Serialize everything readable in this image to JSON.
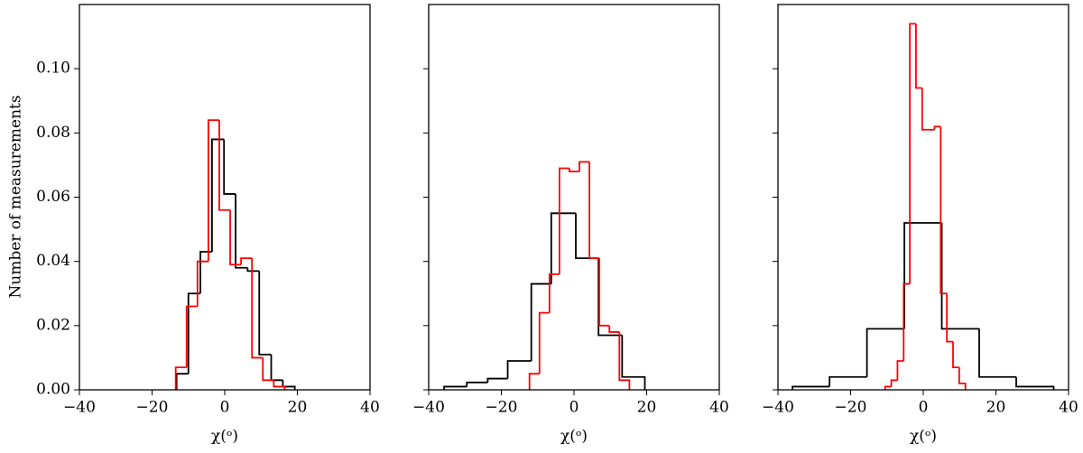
{
  "sharey": true,
  "chart_data": [
    {
      "type": "histogram",
      "xlabel": "χ(ᵒ)",
      "ylabel": "Number of measurements",
      "xlim": [
        -40,
        40
      ],
      "xticks": [
        {
          "value": -40,
          "label": "−40"
        },
        {
          "value": -20,
          "label": "−20"
        },
        0,
        20,
        40
      ],
      "ylim": [
        0,
        0.12
      ],
      "yticks": [
        {
          "value": 0,
          "label": "0.00"
        },
        {
          "value": 0.02,
          "label": "0.02"
        },
        {
          "value": 0.04,
          "label": "0.04"
        },
        {
          "value": 0.06,
          "label": "0.06"
        },
        {
          "value": 0.08,
          "label": "0.08"
        },
        {
          "value": 0.1,
          "label": "0.10"
        }
      ],
      "series": [
        {
          "color": "#000000",
          "bins": [
            -13.25,
            -10,
            -6.7,
            -3.5,
            -0.2,
            3,
            6.3,
            9.5,
            12.8,
            16,
            19.3
          ],
          "values": [
            0.005,
            0.03,
            0.043,
            0.078,
            0.061,
            0.038,
            0.037,
            0.011,
            0.003,
            0.001
          ]
        },
        {
          "color": "#ff0000",
          "bins": [
            -13.5,
            -10.5,
            -7.5,
            -4.5,
            -1.5,
            1.5,
            4.5,
            7.5,
            10.5,
            13.5,
            16.5
          ],
          "values": [
            0.007,
            0.026,
            0.04,
            0.084,
            0.056,
            0.039,
            0.041,
            0.01,
            0.003,
            0.001
          ]
        }
      ]
    },
    {
      "type": "histogram",
      "xlabel": "χ(ᵒ)",
      "xlim": [
        -40,
        40
      ],
      "xticks": [
        {
          "value": -40,
          "label": "−40"
        },
        {
          "value": -20,
          "label": "−20"
        },
        0,
        20,
        40
      ],
      "series": [
        {
          "color": "#000000",
          "bins": [
            -35.75,
            -29.5,
            -23.75,
            -18.25,
            -11.75,
            -6.25,
            0.5,
            6.75,
            13.25,
            19.5
          ],
          "values": [
            0.001,
            0.0023,
            0.0035,
            0.009,
            0.033,
            0.055,
            0.041,
            0.017,
            0.004
          ]
        },
        {
          "color": "#ff0000",
          "bins": [
            -12.25,
            -9.5,
            -6.75,
            -4,
            -1.25,
            1.5,
            4.25,
            7,
            9.75,
            12.5,
            15.25
          ],
          "values": [
            0.005,
            0.024,
            0.036,
            0.069,
            0.068,
            0.071,
            0.041,
            0.02,
            0.018,
            0.003
          ]
        }
      ]
    },
    {
      "type": "histogram",
      "xlabel": "χ(ᵒ)",
      "xlim": [
        -40,
        40
      ],
      "xticks": [
        {
          "value": -40,
          "label": "−40"
        },
        {
          "value": -20,
          "label": "−20"
        },
        0,
        20,
        40
      ],
      "series": [
        {
          "color": "#000000",
          "bins": [
            -36,
            -25.8,
            -15.5,
            -5.2,
            5.1,
            15.4,
            25.6,
            35.9
          ],
          "values": [
            0.001,
            0.004,
            0.019,
            0.052,
            0.019,
            0.004,
            0.001
          ]
        },
        {
          "color": "#ff0000",
          "bins": [
            -10.5,
            -8.8,
            -7.1,
            -5.4,
            -3.7,
            -2,
            -0.3,
            1.4,
            3.1,
            4.8,
            6.5,
            8.2,
            9.9,
            11.6
          ],
          "values": [
            0.001,
            0.003,
            0.009,
            0.033,
            0.114,
            0.094,
            0.081,
            0.081,
            0.082,
            0.03,
            0.015,
            0.007,
            0.002
          ]
        }
      ]
    }
  ]
}
